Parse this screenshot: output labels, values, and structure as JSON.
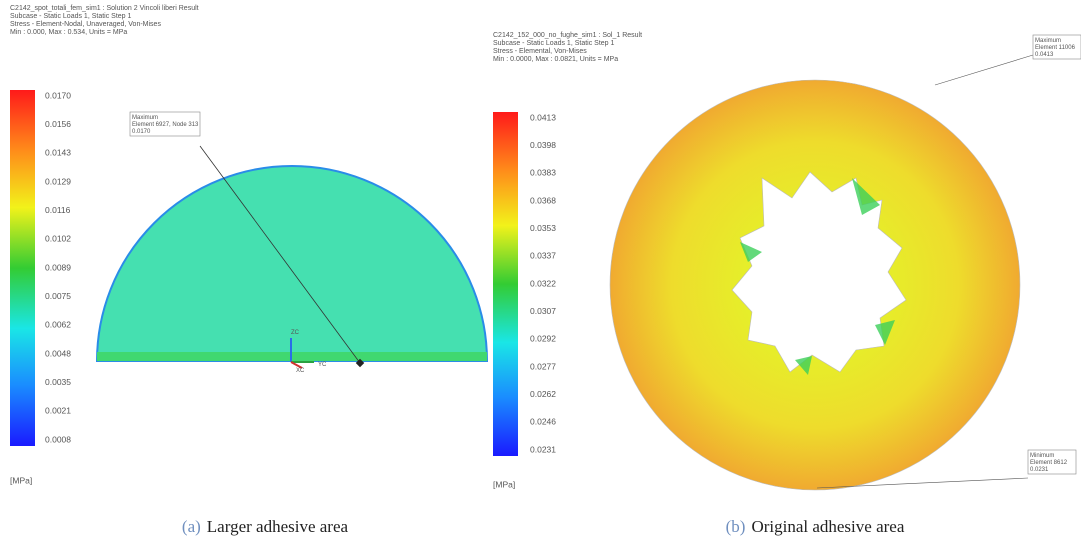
{
  "panels": [
    {
      "header": [
        "C2142_spot_totali_fem_sim1 : Solution 2 Vincoli liberi Result",
        "Subcase - Static Loads 1, Static Step 1",
        "Stress - Element-Nodal, Unaveraged, Von-Mises",
        "Min : 0.000, Max : 0.534, Units = MPa"
      ],
      "legend": {
        "labels": [
          "0.0170",
          "0.0156",
          "0.0143",
          "0.0129",
          "0.0116",
          "0.0102",
          "0.0089",
          "0.0075",
          "0.0062",
          "0.0048",
          "0.0035",
          "0.0021",
          "0.0008"
        ],
        "unit": "[MPa]"
      },
      "annotations": [
        {
          "lines": [
            "Maximum",
            "Element 6927, Node 313",
            "0.0170"
          ]
        }
      ],
      "axes": [
        "ZC",
        "XC",
        "YC"
      ],
      "caption": {
        "label": "(a)",
        "text": "Larger adhesive area"
      }
    },
    {
      "header": [
        "C2142_152_000_no_fughe_sim1 : Sol_1 Result",
        "Subcase - Static Loads 1, Static Step 1",
        "Stress - Elemental, Von-Mises",
        "Min : 0.0000, Max : 0.0821, Units = MPa"
      ],
      "legend": {
        "labels": [
          "0.0413",
          "0.0398",
          "0.0383",
          "0.0368",
          "0.0353",
          "0.0337",
          "0.0322",
          "0.0307",
          "0.0292",
          "0.0277",
          "0.0262",
          "0.0246",
          "0.0231"
        ],
        "unit": "[MPa]"
      },
      "annotations": [
        {
          "lines": [
            "Maximum",
            "Element 11006",
            "0.0413"
          ]
        },
        {
          "lines": [
            "Minimum",
            "Element 8612",
            "0.0231"
          ]
        }
      ],
      "caption": {
        "label": "(b)",
        "text": "Original adhesive area"
      }
    }
  ]
}
